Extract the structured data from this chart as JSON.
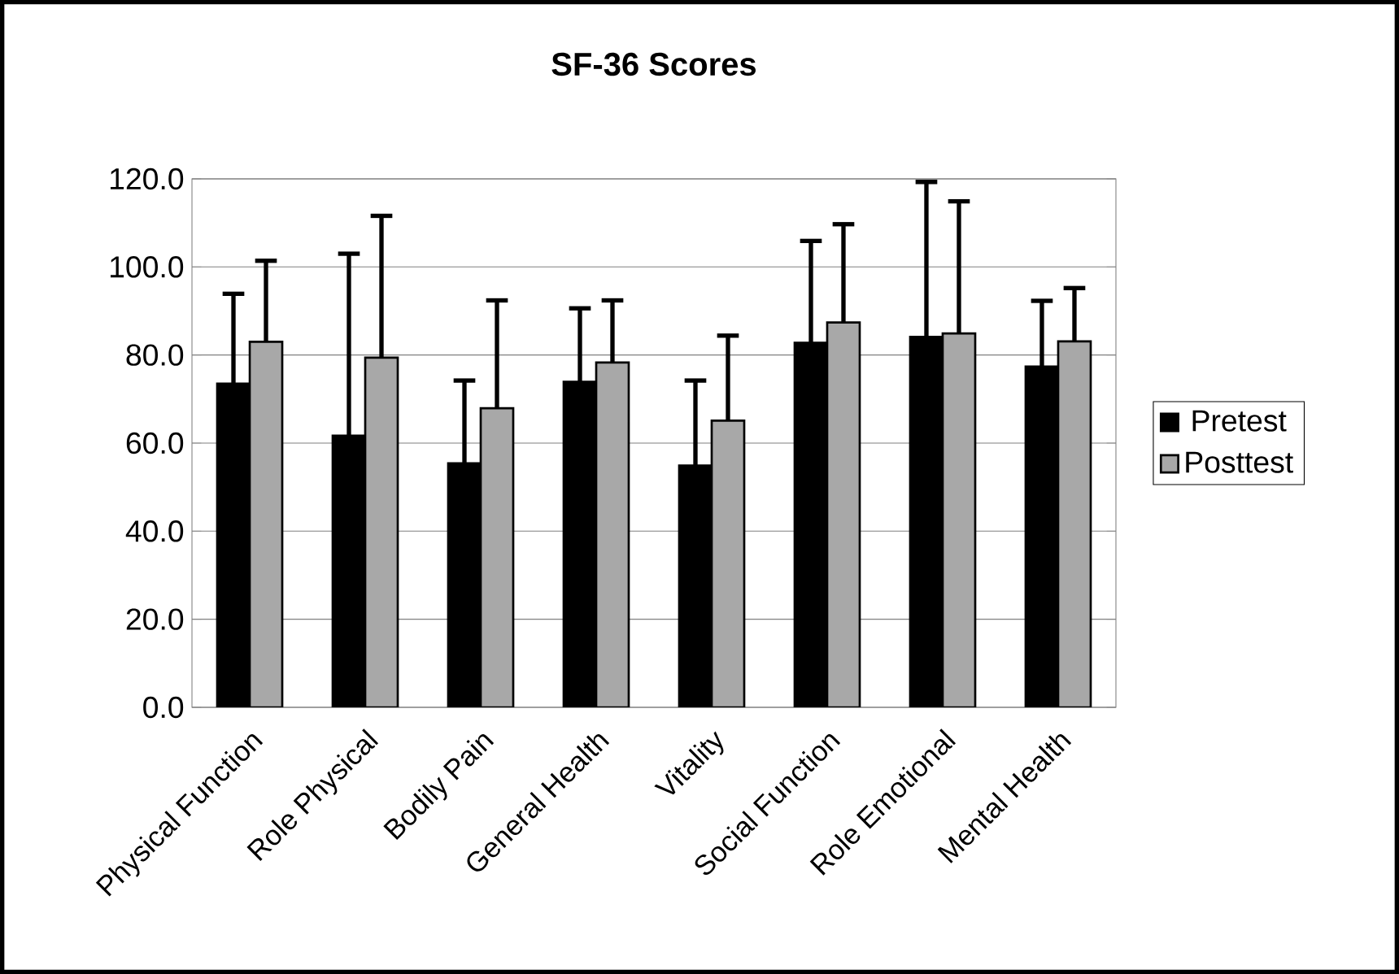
{
  "chart_data": {
    "type": "bar",
    "title": "SF-36 Scores",
    "categories": [
      "Physical Function",
      "Role Physical",
      "Bodily Pain",
      "General Health",
      "Vitality",
      "Social Function",
      "Role Emotional",
      "Mental Health"
    ],
    "series": [
      {
        "name": "Pretest",
        "color": "#000000",
        "values": [
          73.5,
          61.7,
          55.4,
          73.9,
          54.9,
          82.8,
          84.1,
          77.4
        ],
        "errors": [
          [
            73.5,
            93.9
          ],
          [
            61.7,
            103.0
          ],
          [
            55.4,
            74.2
          ],
          [
            73.9,
            90.6
          ],
          [
            54.9,
            74.2
          ],
          [
            82.8,
            105.9
          ],
          [
            84.1,
            119.3
          ],
          [
            77.4,
            92.3
          ]
        ]
      },
      {
        "name": "Posttest",
        "color": "#a8a8a8",
        "values": [
          83.0,
          79.4,
          67.9,
          78.3,
          65.1,
          87.4,
          84.9,
          83.1
        ],
        "errors": [
          [
            83.0,
            101.4
          ],
          [
            79.4,
            111.6
          ],
          [
            67.9,
            92.4
          ],
          [
            78.3,
            92.4
          ],
          [
            65.1,
            84.4
          ],
          [
            87.4,
            109.7
          ],
          [
            84.9,
            114.9
          ],
          [
            83.1,
            95.2
          ]
        ]
      }
    ],
    "ylim": [
      0,
      120
    ],
    "yticks": [
      {
        "value": 0,
        "label": "0.0"
      },
      {
        "value": 20,
        "label": "20.0"
      },
      {
        "value": 40,
        "label": "40.0"
      },
      {
        "value": 60,
        "label": "60.0"
      },
      {
        "value": 80,
        "label": "80.0"
      },
      {
        "value": 100,
        "label": "100.0"
      },
      {
        "value": 120,
        "label": "120.0"
      }
    ],
    "grid": "y",
    "legend": "right"
  }
}
